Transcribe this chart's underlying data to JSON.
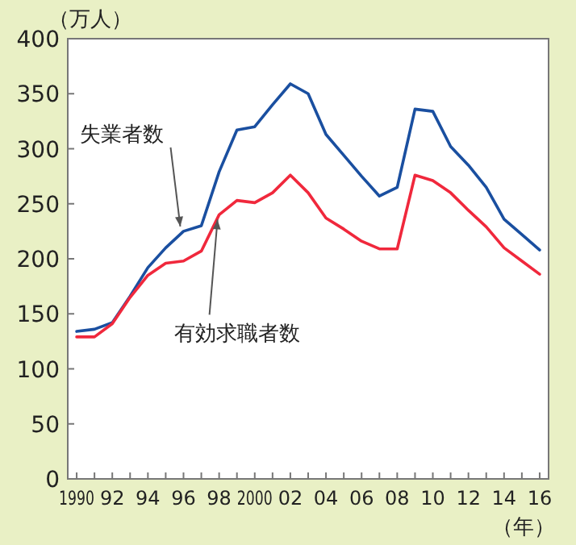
{
  "chart_data": {
    "type": "line",
    "ylabel": "（万人）",
    "xlabel": "（年）",
    "x": [
      1990,
      1991,
      1992,
      1993,
      1994,
      1995,
      1996,
      1997,
      1998,
      1999,
      2000,
      2001,
      2002,
      2003,
      2004,
      2005,
      2006,
      2007,
      2008,
      2009,
      2010,
      2011,
      2012,
      2013,
      2014,
      2015,
      2016
    ],
    "series": [
      {
        "color": "#1a4fa0",
        "values": [
          134,
          136,
          142,
          166,
          192,
          210,
          225,
          230,
          279,
          317,
          320,
          340,
          359,
          350,
          313,
          294,
          275,
          257,
          265,
          336,
          334,
          302,
          285,
          265,
          236,
          222,
          208
        ]
      },
      {
        "color": "#f0283c",
        "values": [
          129,
          129,
          141,
          165,
          185,
          196,
          198,
          207,
          240,
          253,
          251,
          260,
          276,
          260,
          237,
          227,
          216,
          209,
          209,
          276,
          271,
          260,
          244,
          229,
          210,
          198,
          186
        ]
      }
    ],
    "annotations": [
      {
        "text": "失業者数",
        "x": 1996,
        "y": 225
      },
      {
        "text": "有効求職者数",
        "x": 1998,
        "y": 240
      }
    ],
    "xlim": [
      1989.5,
      2016.5
    ],
    "ylim": [
      0,
      400
    ],
    "xticks": [
      {
        "value": 1990,
        "label": "1990"
      },
      {
        "value": 1991,
        "label": null
      },
      {
        "value": 1992,
        "label": "92"
      },
      {
        "value": 1993,
        "label": null
      },
      {
        "value": 1994,
        "label": "94"
      },
      {
        "value": 1995,
        "label": null
      },
      {
        "value": 1996,
        "label": "96"
      },
      {
        "value": 1997,
        "label": null
      },
      {
        "value": 1998,
        "label": "98"
      },
      {
        "value": 1999,
        "label": null
      },
      {
        "value": 2000,
        "label": "2000"
      },
      {
        "value": 2001,
        "label": null
      },
      {
        "value": 2002,
        "label": "02"
      },
      {
        "value": 2003,
        "label": null
      },
      {
        "value": 2004,
        "label": "04"
      },
      {
        "value": 2005,
        "label": null
      },
      {
        "value": 2006,
        "label": "06"
      },
      {
        "value": 2007,
        "label": null
      },
      {
        "value": 2008,
        "label": "08"
      },
      {
        "value": 2009,
        "label": null
      },
      {
        "value": 2010,
        "label": "10"
      },
      {
        "value": 2011,
        "label": null
      },
      {
        "value": 2012,
        "label": "12"
      },
      {
        "value": 2013,
        "label": null
      },
      {
        "value": 2014,
        "label": "14"
      },
      {
        "value": 2015,
        "label": null
      },
      {
        "value": 2016,
        "label": "16"
      }
    ],
    "yticks": [
      0,
      50,
      100,
      150,
      200,
      250,
      300,
      350,
      400
    ],
    "grid": false,
    "marker": "none",
    "line_style": "solid"
  }
}
